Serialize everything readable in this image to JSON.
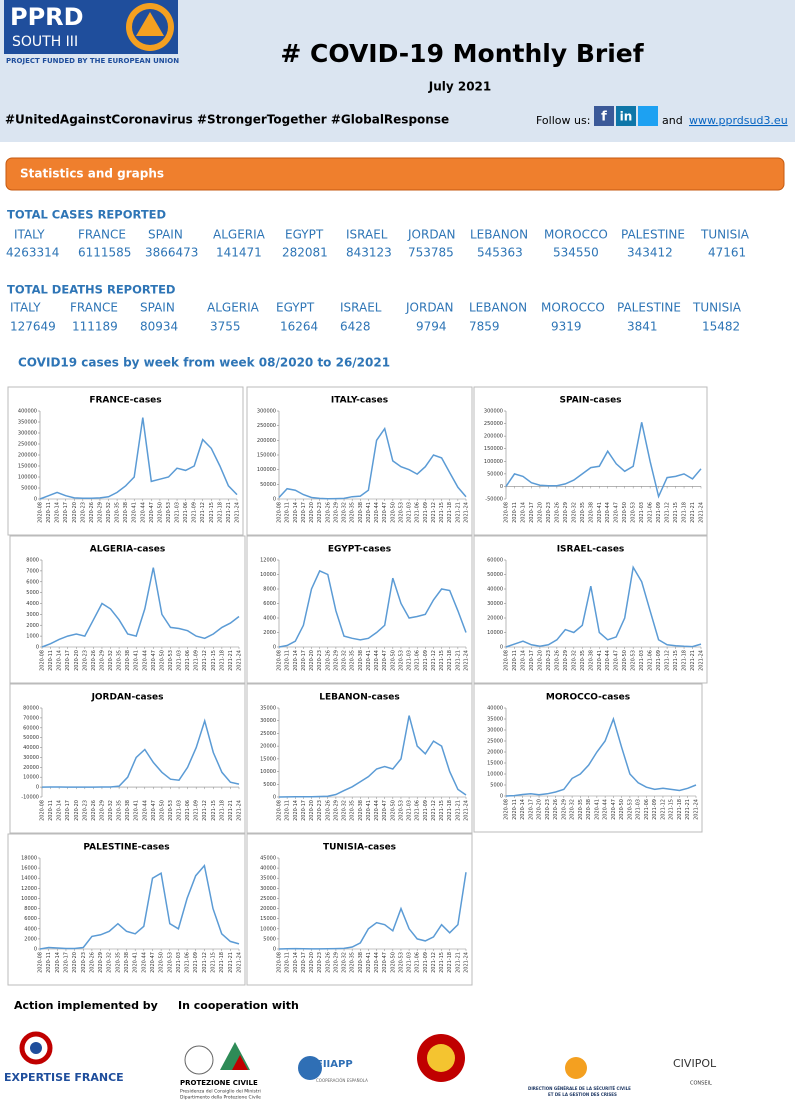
{
  "header": {
    "logo": "PPRD",
    "logo_sub": "SOUTH III",
    "funded": "PROJECT FUNDED BY THE EUROPEAN UNION",
    "title": "# COVID-19 Monthly Brief",
    "date": "July 2021",
    "hashtags": "#UnitedAgainstCoronavirus #StrongerTogether #GlobalResponse",
    "follow": "Follow us:",
    "and": "and",
    "link": "www.pprdsud3.eu"
  },
  "section": "Statistics and graphs",
  "cases": {
    "title": "TOTAL CASES REPORTED",
    "countries": [
      "ITALY",
      "FRANCE",
      "SPAIN",
      "ALGERIA",
      "EGYPT",
      "ISRAEL",
      "JORDAN",
      "LEBANON",
      "MOROCCO",
      "PALESTINE",
      "TUNISIA"
    ],
    "values": [
      4263314,
      6111585,
      3866473,
      141471,
      282081,
      843123,
      753785,
      545363,
      534550,
      343412,
      47161
    ]
  },
  "deaths": {
    "title": "TOTAL DEATHS REPORTED",
    "countries": [
      "ITALY",
      "FRANCE",
      "SPAIN",
      "ALGERIA",
      "EGYPT",
      "ISRAEL",
      "JORDAN",
      "LEBANON",
      "MOROCCO",
      "PALESTINE",
      "TUNISIA"
    ],
    "values": [
      127649,
      111189,
      80934,
      3755,
      16264,
      6428,
      9794,
      7859,
      9319,
      3841,
      15482
    ]
  },
  "charts_heading": "COVID19 cases by week from week 08/2020 to 26/2021",
  "chart_data": [
    {
      "type": "line",
      "title": "FRANCE-cases",
      "color": "#5b9bd5",
      "categories": [
        "2020-08",
        "2020-11",
        "2020-14",
        "2020-17",
        "2020-20",
        "2020-23",
        "2020-26",
        "2020-29",
        "2020-32",
        "2020-35",
        "2020-38",
        "2020-41",
        "2020-44",
        "2020-47",
        "2020-50",
        "2020-53",
        "2021-03",
        "2021-06",
        "2021-09",
        "2021-12",
        "2021-15",
        "2021-18",
        "2021-21",
        "2021-24"
      ],
      "values": [
        0,
        15000,
        30000,
        15000,
        5000,
        3000,
        3000,
        5000,
        10000,
        30000,
        60000,
        100000,
        370000,
        80000,
        90000,
        100000,
        140000,
        130000,
        150000,
        270000,
        230000,
        150000,
        60000,
        20000
      ],
      "ylim": [
        0,
        400000
      ],
      "yticks": [
        0,
        50000,
        100000,
        150000,
        200000,
        250000,
        300000,
        350000,
        400000
      ]
    },
    {
      "type": "line",
      "title": "ITALY-cases",
      "color": "#5b9bd5",
      "categories": [
        "2020-08",
        "2020-11",
        "2020-14",
        "2020-17",
        "2020-20",
        "2020-23",
        "2020-26",
        "2020-29",
        "2020-32",
        "2020-35",
        "2020-38",
        "2020-41",
        "2020-44",
        "2020-47",
        "2020-50",
        "2020-53",
        "2021-03",
        "2021-06",
        "2021-09",
        "2021-12",
        "2021-15",
        "2021-18",
        "2021-21",
        "2021-24"
      ],
      "values": [
        5000,
        35000,
        30000,
        15000,
        5000,
        2000,
        1000,
        1500,
        2000,
        8000,
        10000,
        30000,
        200000,
        240000,
        130000,
        110000,
        100000,
        85000,
        110000,
        150000,
        140000,
        90000,
        40000,
        8000
      ],
      "ylim": [
        0,
        300000
      ],
      "yticks": [
        0,
        50000,
        100000,
        150000,
        200000,
        250000,
        300000
      ]
    },
    {
      "type": "line",
      "title": "SPAIN-cases",
      "color": "#5b9bd5",
      "categories": [
        "2020-08",
        "2020-11",
        "2020-14",
        "2020-17",
        "2020-20",
        "2020-23",
        "2020-26",
        "2020-29",
        "2020-32",
        "2020-35",
        "2020-38",
        "2020-41",
        "2020-44",
        "2020-47",
        "2020-50",
        "2020-53",
        "2021-03",
        "2021-06",
        "2021-09",
        "2021-12",
        "2021-15",
        "2021-18",
        "2021-21",
        "2021-24"
      ],
      "values": [
        0,
        50000,
        40000,
        15000,
        5000,
        3000,
        3000,
        10000,
        25000,
        50000,
        75000,
        80000,
        140000,
        90000,
        60000,
        80000,
        255000,
        100000,
        -40000,
        35000,
        40000,
        50000,
        30000,
        70000
      ],
      "ylim": [
        -50000,
        300000
      ],
      "yticks": [
        -50000,
        0,
        50000,
        100000,
        150000,
        200000,
        250000,
        300000
      ]
    },
    {
      "type": "line",
      "title": "ALGERIA-cases",
      "color": "#5b9bd5",
      "categories": [
        "2020-08",
        "2020-11",
        "2020-14",
        "2020-17",
        "2020-20",
        "2020-23",
        "2020-26",
        "2020-29",
        "2020-32",
        "2020-35",
        "2020-38",
        "2020-41",
        "2020-44",
        "2020-47",
        "2020-50",
        "2020-53",
        "2021-03",
        "2021-06",
        "2021-09",
        "2021-12",
        "2021-15",
        "2021-18",
        "2021-21",
        "2021-24"
      ],
      "values": [
        0,
        300,
        700,
        1000,
        1200,
        1000,
        2500,
        4000,
        3500,
        2500,
        1200,
        1000,
        3500,
        7300,
        3000,
        1800,
        1700,
        1500,
        1000,
        800,
        1200,
        1800,
        2200,
        2800
      ],
      "ylim": [
        0,
        8000
      ],
      "yticks": [
        0,
        1000,
        2000,
        3000,
        4000,
        5000,
        6000,
        7000,
        8000
      ]
    },
    {
      "type": "line",
      "title": "EGYPT-cases",
      "color": "#5b9bd5",
      "categories": [
        "2020-08",
        "2020-11",
        "2020-14",
        "2020-17",
        "2020-20",
        "2020-23",
        "2020-26",
        "2020-29",
        "2020-32",
        "2020-35",
        "2020-38",
        "2020-41",
        "2020-44",
        "2020-47",
        "2020-50",
        "2020-53",
        "2021-03",
        "2021-06",
        "2021-09",
        "2021-12",
        "2021-15",
        "2021-18",
        "2021-21",
        "2021-24"
      ],
      "values": [
        0,
        200,
        800,
        3000,
        8000,
        10500,
        10000,
        5000,
        1500,
        1200,
        1000,
        1200,
        2000,
        3000,
        9500,
        6000,
        4000,
        4200,
        4500,
        6500,
        8000,
        7800,
        5000,
        2000
      ],
      "ylim": [
        0,
        12000
      ],
      "yticks": [
        0,
        2000,
        4000,
        6000,
        8000,
        10000,
        12000
      ]
    },
    {
      "type": "line",
      "title": "ISRAEL-cases",
      "color": "#5b9bd5",
      "categories": [
        "2020-08",
        "2020-11",
        "2020-14",
        "2020-17",
        "2020-20",
        "2020-23",
        "2020-26",
        "2020-29",
        "2020-32",
        "2020-35",
        "2020-38",
        "2020-41",
        "2020-44",
        "2020-47",
        "2020-50",
        "2020-53",
        "2021-03",
        "2021-06",
        "2021-09",
        "2021-12",
        "2021-15",
        "2021-18",
        "2021-21",
        "2021-24"
      ],
      "values": [
        0,
        2000,
        4000,
        1500,
        500,
        1500,
        5000,
        12000,
        10000,
        15000,
        42000,
        10000,
        5000,
        7000,
        20000,
        55000,
        45000,
        25000,
        5000,
        1500,
        800,
        500,
        300,
        2000
      ],
      "ylim": [
        0,
        60000
      ],
      "yticks": [
        0,
        10000,
        20000,
        30000,
        40000,
        50000,
        60000
      ]
    },
    {
      "type": "line",
      "title": "JORDAN-cases",
      "color": "#5b9bd5",
      "categories": [
        "2020-08",
        "2020-11",
        "2020-14",
        "2020-17",
        "2020-20",
        "2020-23",
        "2020-26",
        "2020-29",
        "2020-32",
        "2020-35",
        "2020-38",
        "2020-41",
        "2020-44",
        "2020-47",
        "2020-50",
        "2020-53",
        "2021-03",
        "2021-06",
        "2021-09",
        "2021-12",
        "2021-15",
        "2021-18",
        "2021-21",
        "2021-24"
      ],
      "values": [
        0,
        100,
        100,
        50,
        50,
        50,
        50,
        100,
        100,
        1000,
        10000,
        30000,
        38000,
        25000,
        15000,
        8000,
        7000,
        20000,
        40000,
        67000,
        35000,
        15000,
        5000,
        3000
      ],
      "ylim": [
        -10000,
        80000
      ],
      "yticks": [
        -10000,
        0,
        10000,
        20000,
        30000,
        40000,
        50000,
        60000,
        70000,
        80000
      ]
    },
    {
      "type": "line",
      "title": "LEBANON-cases",
      "color": "#5b9bd5",
      "categories": [
        "2020-08",
        "2020-11",
        "2020-14",
        "2020-17",
        "2020-20",
        "2020-23",
        "2020-26",
        "2020-29",
        "2020-32",
        "2020-35",
        "2020-38",
        "2020-41",
        "2020-44",
        "2020-47",
        "2020-50",
        "2020-53",
        "2021-03",
        "2021-06",
        "2021-09",
        "2021-12",
        "2021-15",
        "2021-18",
        "2021-21",
        "2021-24"
      ],
      "values": [
        0,
        50,
        100,
        100,
        100,
        200,
        300,
        1000,
        2500,
        4000,
        6000,
        8000,
        11000,
        12000,
        11000,
        15000,
        32000,
        20000,
        17000,
        22000,
        20000,
        10000,
        3000,
        800
      ],
      "ylim": [
        0,
        35000
      ],
      "yticks": [
        0,
        5000,
        10000,
        15000,
        20000,
        25000,
        30000,
        35000
      ]
    },
    {
      "type": "line",
      "title": "MOROCCO-cases",
      "color": "#5b9bd5",
      "categories": [
        "2020-08",
        "2020-11",
        "2020-14",
        "2020-17",
        "2020-20",
        "2020-23",
        "2020-26",
        "2020-29",
        "2020-32",
        "2020-35",
        "2020-38",
        "2020-41",
        "2020-44",
        "2020-47",
        "2020-50",
        "2020-53",
        "2021-03",
        "2021-06",
        "2021-09",
        "2021-12",
        "2021-15",
        "2021-18",
        "2021-21",
        "2021-24"
      ],
      "values": [
        0,
        200,
        700,
        1000,
        600,
        1000,
        1800,
        3000,
        8000,
        10000,
        14000,
        20000,
        25000,
        35000,
        22000,
        10000,
        6000,
        4000,
        3000,
        3500,
        3000,
        2500,
        3500,
        5000
      ],
      "ylim": [
        0,
        40000
      ],
      "yticks": [
        0,
        5000,
        10000,
        15000,
        20000,
        25000,
        30000,
        35000,
        40000
      ]
    },
    {
      "type": "line",
      "title": "PALESTINE-cases",
      "color": "#5b9bd5",
      "categories": [
        "2020-08",
        "2020-11",
        "2020-14",
        "2020-17",
        "2020-20",
        "2020-23",
        "2020-26",
        "2020-29",
        "2020-32",
        "2020-35",
        "2020-38",
        "2020-41",
        "2020-44",
        "2020-47",
        "2020-50",
        "2020-53",
        "2021-03",
        "2021-06",
        "2021-09",
        "2021-12",
        "2021-15",
        "2021-18",
        "2021-21",
        "2021-24"
      ],
      "values": [
        0,
        300,
        200,
        100,
        100,
        300,
        2500,
        2800,
        3500,
        5000,
        3500,
        3000,
        4500,
        14000,
        15000,
        5000,
        4000,
        10000,
        14500,
        16500,
        8000,
        3000,
        1500,
        1000
      ],
      "ylim": [
        0,
        18000
      ],
      "yticks": [
        0,
        2000,
        4000,
        6000,
        8000,
        10000,
        12000,
        14000,
        16000,
        18000
      ]
    },
    {
      "type": "line",
      "title": "TUNISIA-cases",
      "color": "#5b9bd5",
      "categories": [
        "2020-08",
        "2020-11",
        "2020-14",
        "2020-17",
        "2020-20",
        "2020-23",
        "2020-26",
        "2020-29",
        "2020-32",
        "2020-35",
        "2020-38",
        "2020-41",
        "2020-44",
        "2020-47",
        "2020-50",
        "2020-53",
        "2021-03",
        "2021-06",
        "2021-09",
        "2021-12",
        "2021-15",
        "2021-18",
        "2021-21",
        "2021-24"
      ],
      "values": [
        0,
        100,
        200,
        100,
        50,
        50,
        100,
        200,
        300,
        1000,
        3000,
        10000,
        13000,
        12000,
        9000,
        20000,
        10000,
        5000,
        4000,
        6000,
        12000,
        8000,
        12000,
        38000
      ],
      "ylim": [
        0,
        45000
      ],
      "yticks": [
        0,
        5000,
        10000,
        15000,
        20000,
        25000,
        30000,
        35000,
        40000,
        45000
      ]
    }
  ],
  "footer": {
    "implemented": "Action implemented by",
    "cooperation": "In cooperation with",
    "logos": [
      "EXPERTISE FRANCE",
      "PROTEZIONE CIVILE",
      "Presidenza del Consiglio dei Ministri",
      "Dipartimento della Protezione Civile",
      "FIIAPP",
      "COOPERACIÓN ESPAÑOLA",
      "DIRECTION GÉNÉRALE DE LA SÉCURITÉ CIVILE",
      "ET DE LA GESTION DES CRISES",
      "CIVIPOL",
      "CONSEIL"
    ]
  }
}
